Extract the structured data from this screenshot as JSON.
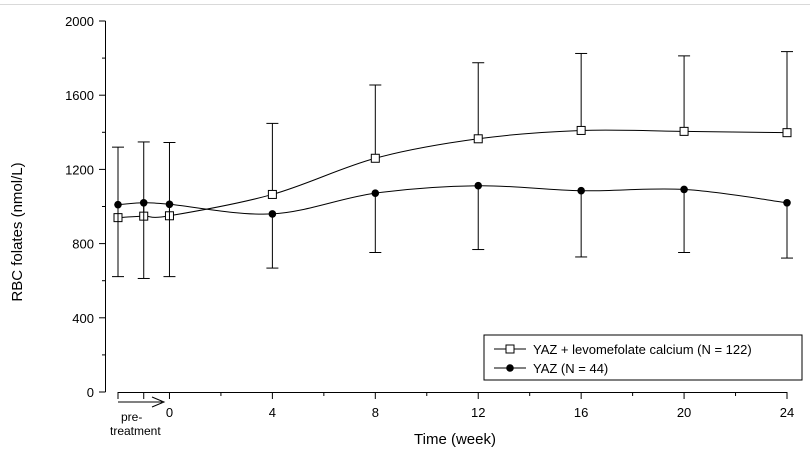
{
  "chart_data": {
    "type": "line",
    "xlabel": "Time (week)",
    "ylabel": "RBC folates (nmol/L)",
    "ylim": [
      0,
      2000
    ],
    "yticks": [
      0,
      400,
      800,
      1200,
      1600,
      2000
    ],
    "xlim": [
      -2,
      24
    ],
    "xticks": [
      0,
      4,
      8,
      12,
      16,
      20,
      24
    ],
    "pre_treatment_label": [
      "pre-",
      "treatment"
    ],
    "legend_position": "bottom-right",
    "series": [
      {
        "name": "YAZ + levomefolate calcium (N = 122)",
        "marker": "open-square",
        "x": [
          -2,
          -1,
          0,
          4,
          8,
          12,
          16,
          20,
          24
        ],
        "y": [
          940,
          948,
          950,
          1065,
          1260,
          1365,
          1410,
          1405,
          1398
        ],
        "error_upper": [
          1320,
          1348,
          1345,
          1448,
          1655,
          1775,
          1825,
          1812,
          1835
        ]
      },
      {
        "name": "YAZ (N = 44)",
        "marker": "filled-circle",
        "x": [
          -2,
          -1,
          0,
          4,
          8,
          12,
          16,
          20,
          24
        ],
        "y": [
          1010,
          1020,
          1012,
          960,
          1072,
          1112,
          1085,
          1092,
          1020
        ],
        "error_lower": [
          622,
          612,
          622,
          668,
          752,
          768,
          728,
          752,
          722
        ]
      }
    ]
  }
}
